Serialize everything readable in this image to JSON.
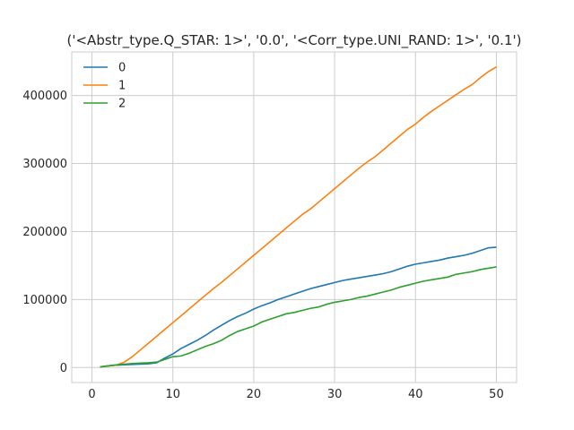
{
  "chart_data": {
    "type": "line",
    "title": "('<Abstr_type.Q_STAR: 1>', '0.0', '<Corr_type.UNI_RAND: 1>', '0.1')",
    "xlabel": "",
    "ylabel": "",
    "xlim": [
      -2.5,
      52.5
    ],
    "ylim": [
      -22000,
      464000
    ],
    "xticks": [
      0,
      10,
      20,
      30,
      40,
      50
    ],
    "yticks": [
      0,
      100000,
      200000,
      300000,
      400000
    ],
    "grid": true,
    "legend_position": "top-left",
    "x": [
      1,
      2,
      3,
      4,
      5,
      6,
      7,
      8,
      9,
      10,
      11,
      12,
      13,
      14,
      15,
      16,
      17,
      18,
      19,
      20,
      21,
      22,
      23,
      24,
      25,
      26,
      27,
      28,
      29,
      30,
      31,
      32,
      33,
      34,
      35,
      36,
      37,
      38,
      39,
      40,
      41,
      42,
      43,
      44,
      45,
      46,
      47,
      48,
      49,
      50
    ],
    "series": [
      {
        "name": "0",
        "color": "#1f77b4",
        "values": [
          1000,
          2500,
          3500,
          4000,
          4500,
          5000,
          5500,
          7000,
          14000,
          20000,
          28000,
          34000,
          40000,
          47000,
          55000,
          62000,
          69000,
          75000,
          80000,
          86000,
          91000,
          95000,
          100000,
          104000,
          108000,
          112000,
          116000,
          119000,
          122000,
          125000,
          128000,
          130000,
          132000,
          134000,
          136000,
          138000,
          141000,
          145000,
          149000,
          152000,
          154000,
          156000,
          158000,
          161000,
          163000,
          165000,
          168000,
          172000,
          176000,
          177000
        ]
      },
      {
        "name": "1",
        "color": "#ff7f0e",
        "values": [
          1000,
          2500,
          3500,
          8000,
          16000,
          26000,
          36000,
          46000,
          56000,
          66000,
          76000,
          86000,
          96000,
          106000,
          116000,
          125000,
          135000,
          145000,
          155000,
          165000,
          175000,
          185000,
          195000,
          205000,
          215000,
          225000,
          233000,
          243000,
          253000,
          263000,
          273000,
          283000,
          293000,
          302000,
          310000,
          320000,
          330000,
          340000,
          350000,
          358000,
          368000,
          377000,
          385000,
          393000,
          401000,
          409000,
          416000,
          426000,
          435000,
          442000
        ]
      },
      {
        "name": "2",
        "color": "#2ca02c",
        "values": [
          1000,
          2500,
          4000,
          5000,
          6000,
          6500,
          7000,
          8000,
          12000,
          16000,
          17000,
          21000,
          26000,
          31000,
          35000,
          40000,
          47000,
          53000,
          57000,
          61000,
          67000,
          71000,
          75000,
          79000,
          81000,
          84000,
          87000,
          89000,
          93000,
          96000,
          98000,
          100000,
          103000,
          105000,
          108000,
          111000,
          114000,
          118000,
          121000,
          124000,
          127000,
          129000,
          131000,
          133000,
          137000,
          139000,
          141000,
          144000,
          146000,
          148000
        ]
      }
    ]
  }
}
